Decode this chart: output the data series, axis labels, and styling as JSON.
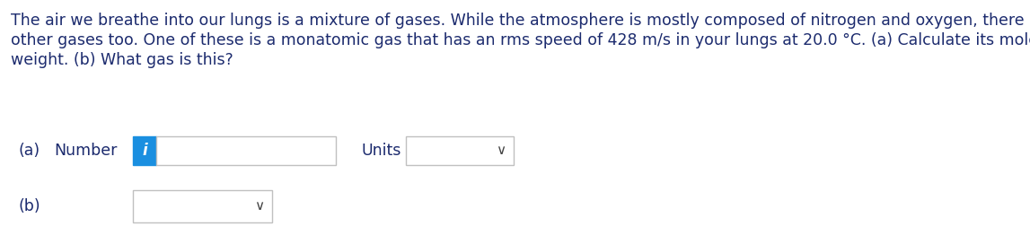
{
  "background_color": "#ffffff",
  "text_color": "#1c2b6e",
  "paragraph_line1": "The air we breathe into our lungs is a mixture of gases. While the atmosphere is mostly composed of nitrogen and oxygen, there are",
  "paragraph_line2": "other gases too. One of these is a monatomic gas that has an rms speed of 428 m/s in your lungs at 20.0 °C. (a) Calculate its molecular",
  "paragraph_line3": "weight. (b) What gas is this?",
  "label_a": "(a)",
  "label_number": "Number",
  "label_units": "Units",
  "label_b": "(b)",
  "icon_color": "#1a8fe0",
  "icon_text": "i",
  "box_border_color": "#c0c0c0",
  "font_size_paragraph": 12.5,
  "font_size_labels": 12.5,
  "font_size_icon": 12,
  "chevron_color": "#444444",
  "chevron_char": "∨"
}
